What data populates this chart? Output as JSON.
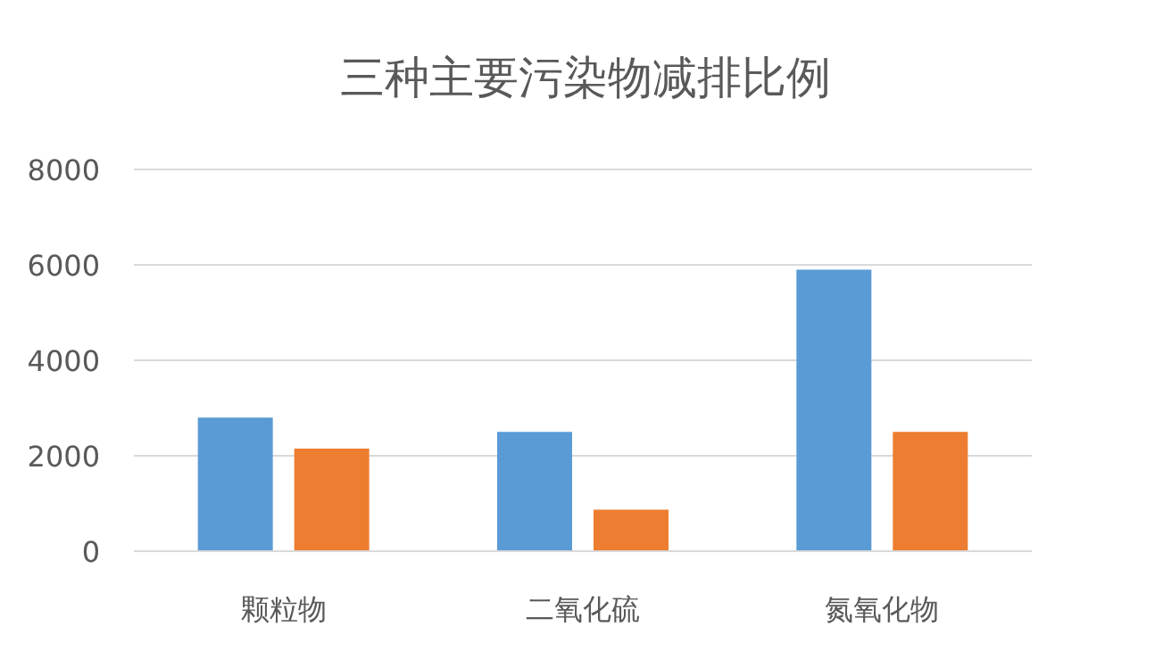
{
  "chart_data": {
    "type": "bar",
    "title": "三种主要污染物减排比例",
    "categories": [
      "颗粒物",
      "二氧化硫",
      "氮氧化物"
    ],
    "series": [
      {
        "color": "#5b9bd5",
        "values": [
          2800,
          2500,
          5900
        ]
      },
      {
        "color": "#ed7d31",
        "values": [
          2150,
          870,
          2500
        ]
      }
    ],
    "ylim": [
      0,
      8000
    ],
    "yticks": [
      0,
      2000,
      4000,
      6000,
      8000
    ],
    "grid": "y"
  }
}
